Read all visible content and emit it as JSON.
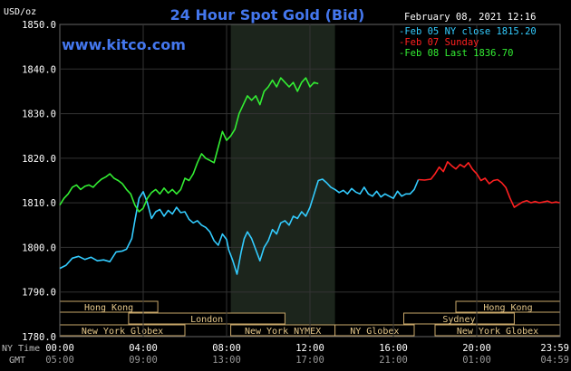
{
  "chart_data": {
    "type": "line",
    "title": "24 Hour Spot Gold (Bid)",
    "watermark": "www.kitco.com",
    "date_label": "February 08, 2021 12:16",
    "y_unit_label": "USD/oz",
    "ylim": [
      1780,
      1850
    ],
    "y_ticks": [
      "1850.0",
      "1840.0",
      "1830.0",
      "1820.0",
      "1810.0",
      "1800.0",
      "1790.0",
      "1780.0"
    ],
    "x_row_labels": {
      "ny": "NY Time",
      "gmt": "GMT"
    },
    "x_ticks_ny": [
      "00:00",
      "04:00",
      "08:00",
      "12:00",
      "16:00",
      "20:00",
      "23:59"
    ],
    "x_ticks_gmt": [
      "05:00",
      "09:00",
      "13:00",
      "17:00",
      "21:00",
      "01:00",
      "04:59"
    ],
    "legend": [
      {
        "name": "Feb 05 NY close 1815.20",
        "color": "#33ccff"
      },
      {
        "name": "Feb 07 Sunday",
        "color": "#ff2020"
      },
      {
        "name": "Feb 08 Last 1836.70",
        "color": "#33ee33"
      }
    ],
    "shaded_session": {
      "label": "New York NYMEX",
      "start": 8.2,
      "end": 13.2
    },
    "sessions": [
      {
        "name": "Hong Kong",
        "start": 0,
        "end": 4.7,
        "row": 0
      },
      {
        "name": "London",
        "start": 3.3,
        "end": 10.8,
        "row": 1
      },
      {
        "name": "New York Globex",
        "start": 0,
        "end": 6.0,
        "row": 2
      },
      {
        "name": "New York NYMEX",
        "start": 8.2,
        "end": 13.2,
        "row": 2
      },
      {
        "name": "NY Globex",
        "start": 13.2,
        "end": 17.0,
        "row": 2
      },
      {
        "name": "Hong Kong",
        "start": 19.0,
        "end": 24,
        "row": 0
      },
      {
        "name": "Sydney",
        "start": 16.5,
        "end": 21.8,
        "row": 1
      },
      {
        "name": "New York Globex",
        "start": 18.0,
        "end": 24,
        "row": 2
      }
    ],
    "series": [
      {
        "name": "Feb 05 NY close 1815.20",
        "color": "#33ccff",
        "x": [
          0,
          0.3,
          0.6,
          0.9,
          1.2,
          1.5,
          1.8,
          2.1,
          2.4,
          2.7,
          3.0,
          3.2,
          3.45,
          3.6,
          3.8,
          4.0,
          4.2,
          4.4,
          4.6,
          4.8,
          5.0,
          5.2,
          5.4,
          5.6,
          5.8,
          6.0,
          6.2,
          6.4,
          6.6,
          6.8,
          7.0,
          7.2,
          7.4,
          7.6,
          7.8,
          8.0,
          8.1,
          8.3,
          8.5,
          8.7,
          8.85,
          9.0,
          9.2,
          9.4,
          9.6,
          9.8,
          10.0,
          10.2,
          10.4,
          10.6,
          10.8,
          11.0,
          11.2,
          11.4,
          11.6,
          11.8,
          12.0,
          12.2,
          12.4,
          12.6,
          12.8,
          13.0,
          13.2,
          13.4,
          13.6,
          13.8,
          14.0,
          14.2,
          14.4,
          14.6,
          14.8,
          15.0,
          15.2,
          15.4,
          15.6,
          15.8,
          16.0,
          16.2,
          16.4,
          16.6,
          16.8,
          17.0,
          17.2
        ],
        "y": [
          1795.3,
          1796.0,
          1797.6,
          1798.0,
          1797.3,
          1797.8,
          1797.0,
          1797.2,
          1796.8,
          1799.0,
          1799.2,
          1799.6,
          1802.0,
          1806.0,
          1811.0,
          1812.5,
          1810.0,
          1806.5,
          1808.0,
          1808.5,
          1807.0,
          1808.3,
          1807.5,
          1809.0,
          1807.8,
          1808.0,
          1806.3,
          1805.5,
          1806.0,
          1805.0,
          1804.5,
          1803.5,
          1801.5,
          1800.5,
          1803.0,
          1801.8,
          1799.5,
          1797.0,
          1794.0,
          1799.0,
          1802.0,
          1803.5,
          1802.0,
          1799.5,
          1797.0,
          1800.0,
          1801.5,
          1804.0,
          1803.0,
          1805.5,
          1806.0,
          1805.0,
          1807.0,
          1806.5,
          1808.0,
          1807.0,
          1809.0,
          1812.0,
          1815.0,
          1815.3,
          1814.5,
          1813.5,
          1813.0,
          1812.3,
          1812.8,
          1812.0,
          1813.2,
          1812.4,
          1812.0,
          1813.5,
          1812.0,
          1811.5,
          1812.6,
          1811.3,
          1812.0,
          1811.5,
          1811.0,
          1812.6,
          1811.5,
          1812.0,
          1812.0,
          1813.0,
          1815.2
        ]
      },
      {
        "name": "Feb 07 Sunday",
        "color": "#ff2020",
        "x": [
          17.2,
          17.5,
          17.8,
          18.0,
          18.2,
          18.4,
          18.6,
          18.8,
          19.0,
          19.2,
          19.4,
          19.6,
          19.8,
          20.0,
          20.2,
          20.4,
          20.6,
          20.8,
          21.0,
          21.2,
          21.4,
          21.6,
          21.8,
          22.0,
          22.2,
          22.4,
          22.6,
          22.8,
          23.0,
          23.2,
          23.4,
          23.6,
          23.8,
          23.98
        ],
        "y": [
          1815.2,
          1815.1,
          1815.3,
          1816.5,
          1818.0,
          1817.0,
          1819.2,
          1818.3,
          1817.6,
          1818.6,
          1818.0,
          1819.0,
          1817.5,
          1816.5,
          1815.0,
          1815.5,
          1814.3,
          1815.0,
          1815.2,
          1814.5,
          1813.4,
          1811.0,
          1809.0,
          1809.6,
          1810.2,
          1810.5,
          1810.0,
          1810.3,
          1810.0,
          1810.2,
          1810.4,
          1810.0,
          1810.2,
          1810.0
        ]
      },
      {
        "name": "Feb 08 Last 1836.70",
        "color": "#33ee33",
        "x": [
          0,
          0.2,
          0.4,
          0.6,
          0.8,
          1.0,
          1.2,
          1.4,
          1.6,
          1.8,
          2.0,
          2.2,
          2.4,
          2.6,
          2.8,
          3.0,
          3.2,
          3.4,
          3.6,
          3.8,
          4.0,
          4.2,
          4.4,
          4.6,
          4.8,
          5.0,
          5.2,
          5.4,
          5.6,
          5.8,
          6.0,
          6.2,
          6.4,
          6.6,
          6.8,
          7.0,
          7.2,
          7.4,
          7.6,
          7.8,
          8.0,
          8.2,
          8.4,
          8.6,
          8.8,
          9.0,
          9.2,
          9.4,
          9.6,
          9.8,
          10.0,
          10.2,
          10.4,
          10.6,
          10.8,
          11.0,
          11.2,
          11.4,
          11.6,
          11.8,
          12.0,
          12.2,
          12.4
        ],
        "y": [
          1809.5,
          1811.0,
          1812.0,
          1813.5,
          1814.0,
          1813.0,
          1813.7,
          1814.0,
          1813.5,
          1814.5,
          1815.3,
          1815.8,
          1816.5,
          1815.5,
          1815.0,
          1814.3,
          1813.0,
          1812.0,
          1809.5,
          1808.0,
          1808.8,
          1811.0,
          1812.3,
          1813.0,
          1812.0,
          1813.3,
          1812.2,
          1813.0,
          1812.0,
          1813.0,
          1815.5,
          1815.0,
          1816.5,
          1819.0,
          1821.0,
          1820.0,
          1819.5,
          1819.0,
          1822.5,
          1826.0,
          1824.0,
          1825.0,
          1826.5,
          1830.0,
          1832.0,
          1834.0,
          1833.0,
          1834.0,
          1832.0,
          1835.0,
          1836.0,
          1837.5,
          1836.0,
          1838.0,
          1837.0,
          1836.0,
          1837.0,
          1835.0,
          1837.0,
          1838.0,
          1836.0,
          1837.0,
          1836.7
        ]
      }
    ]
  }
}
